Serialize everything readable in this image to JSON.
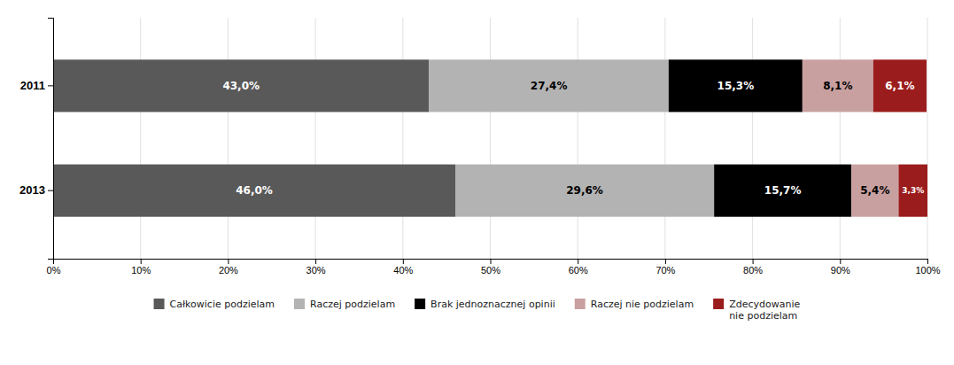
{
  "chart_data": {
    "type": "bar",
    "orientation": "horizontal",
    "stacked": true,
    "data_labels": true,
    "grid": true,
    "legend": "bottom",
    "categories": [
      "2011",
      "2013"
    ],
    "series": [
      {
        "name": "Całkowicie podzielam",
        "color": "#595959",
        "values": [
          43.0,
          46.0
        ],
        "value_labels": [
          "43,0%",
          "46,0%"
        ]
      },
      {
        "name": "Raczej podzielam",
        "color": "#b3b3b3",
        "values": [
          27.4,
          29.6
        ],
        "value_labels": [
          "27,4%",
          "29,6%"
        ]
      },
      {
        "name": "Brak jednoznacznej opinii",
        "color": "#000000",
        "values": [
          15.3,
          15.7
        ],
        "value_labels": [
          "15,3%",
          "15,7%"
        ]
      },
      {
        "name": "Raczej nie podzielam",
        "color": "#c9a0a0",
        "values": [
          8.1,
          5.4
        ],
        "value_labels": [
          "8,1%",
          "5,4%"
        ]
      },
      {
        "name": "Zdecydowanie\nnie podzielam",
        "color": "#9b1c1c",
        "values": [
          6.1,
          3.3
        ],
        "value_labels": [
          "6,1%",
          "3,3%"
        ]
      }
    ],
    "xlim": [
      0,
      100
    ],
    "xticks": [
      {
        "value": 0,
        "label": "0%"
      },
      {
        "value": 10,
        "label": "10%"
      },
      {
        "value": 20,
        "label": "20%"
      },
      {
        "value": 30,
        "label": "30%"
      },
      {
        "value": 40,
        "label": "40%"
      },
      {
        "value": 50,
        "label": "50%"
      },
      {
        "value": 60,
        "label": "60%"
      },
      {
        "value": 70,
        "label": "70%"
      },
      {
        "value": 80,
        "label": "80%"
      },
      {
        "value": 90,
        "label": "90%"
      },
      {
        "value": 100,
        "label": "100%"
      }
    ]
  }
}
